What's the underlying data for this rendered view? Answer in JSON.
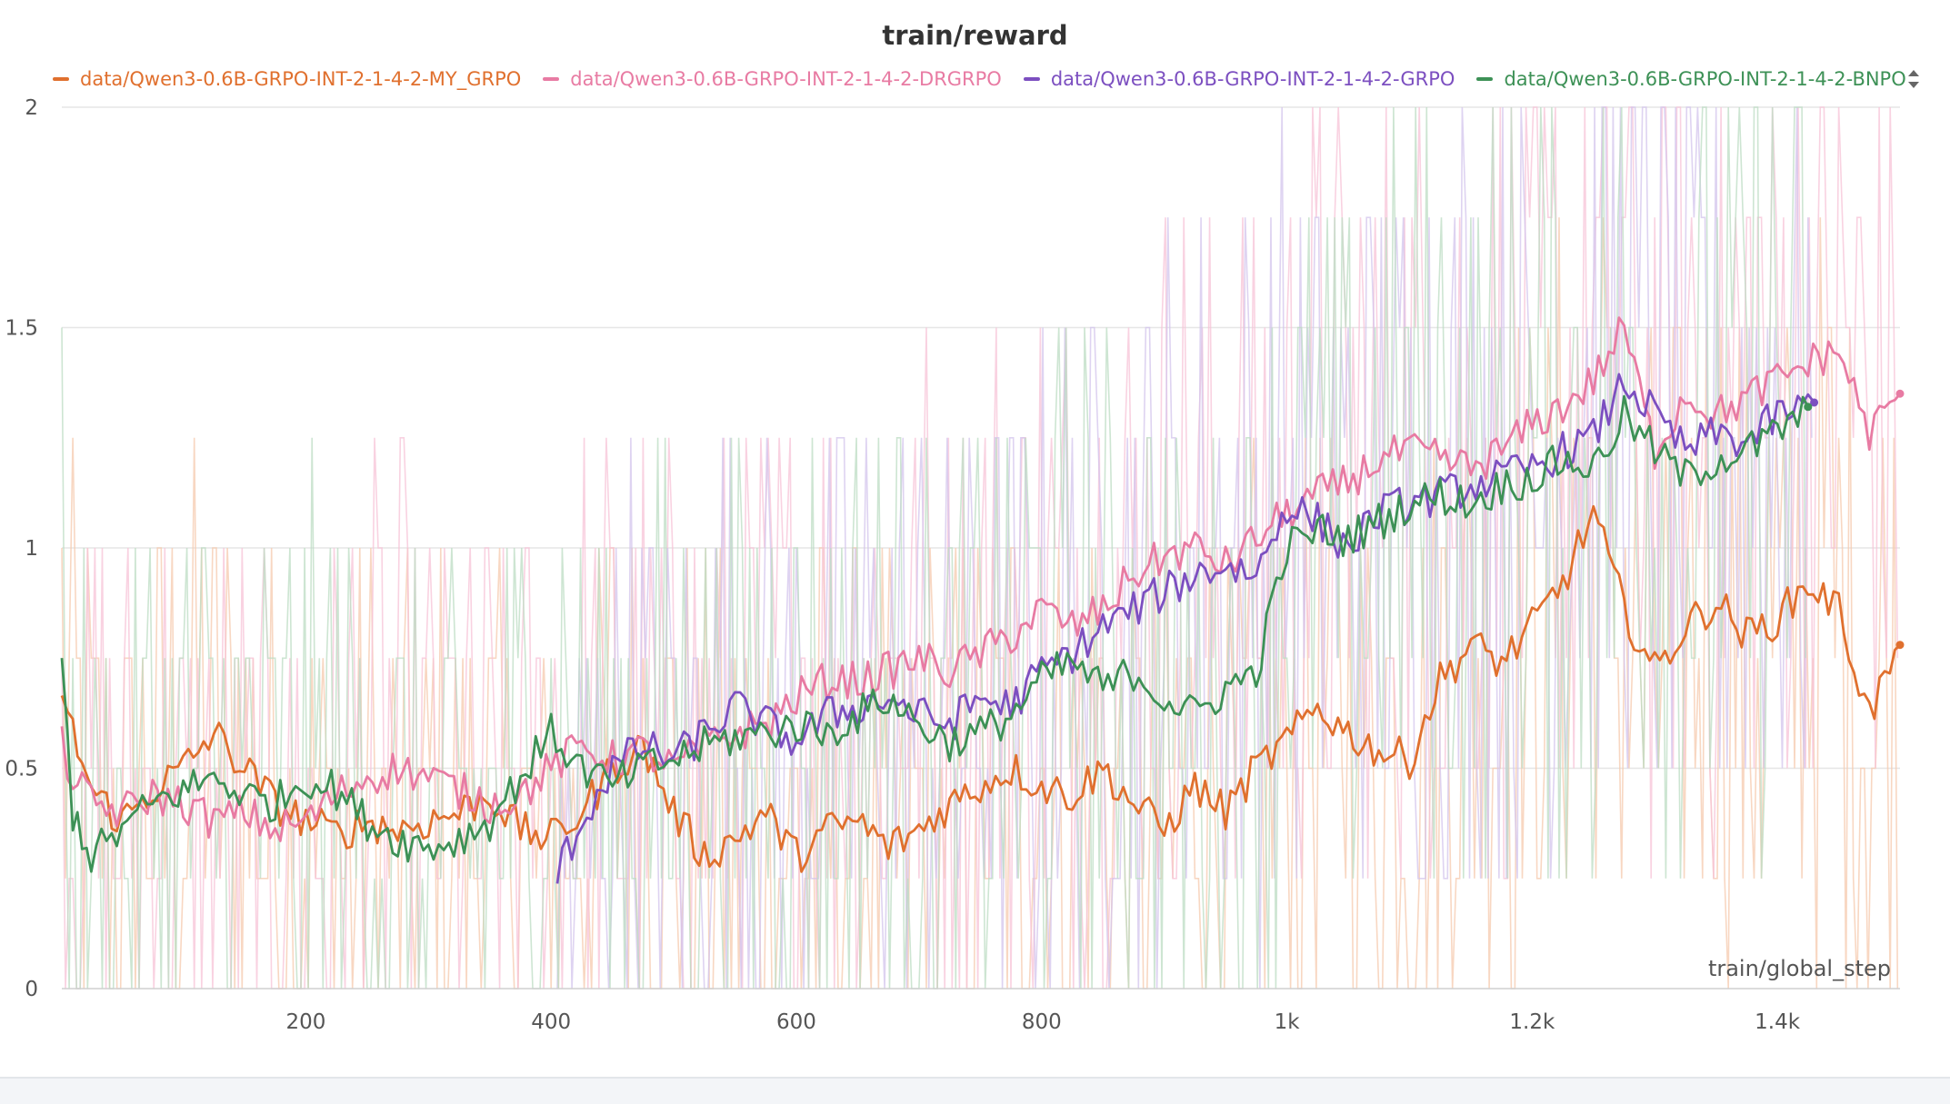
{
  "chart_data": {
    "type": "line",
    "title": "train/reward",
    "xlabel": "train/global_step",
    "ylabel": "",
    "xlim": [
      1,
      1500
    ],
    "ylim": [
      0,
      2
    ],
    "x_ticks": [
      200,
      400,
      600,
      800,
      1000,
      1200,
      1400
    ],
    "x_tick_labels": [
      "200",
      "400",
      "600",
      "800",
      "1k",
      "1.2k",
      "1.4k"
    ],
    "y_ticks": [
      0,
      0.5,
      1,
      1.5,
      2
    ],
    "y_tick_labels": [
      "0",
      "0.5",
      "1",
      "1.5",
      "2"
    ],
    "grid": true,
    "legend_position": "top",
    "series": [
      {
        "name": "data/Qwen3-0.6B-GRPO-INT-2-1-4-2-MY_GRPO",
        "color": "#e0702e",
        "raw_color": "#f5c9ad",
        "x": [
          1,
          10,
          25,
          50,
          75,
          100,
          125,
          150,
          175,
          200,
          225,
          250,
          275,
          300,
          325,
          350,
          375,
          400,
          425,
          450,
          475,
          500,
          525,
          550,
          575,
          600,
          625,
          650,
          675,
          700,
          725,
          750,
          775,
          800,
          825,
          850,
          875,
          900,
          925,
          950,
          975,
          1000,
          1025,
          1050,
          1075,
          1100,
          1125,
          1150,
          1175,
          1200,
          1225,
          1250,
          1275,
          1300,
          1325,
          1350,
          1375,
          1400,
          1425,
          1450,
          1475,
          1500
        ],
        "y": [
          0.65,
          0.58,
          0.45,
          0.38,
          0.45,
          0.5,
          0.58,
          0.5,
          0.42,
          0.38,
          0.35,
          0.38,
          0.36,
          0.38,
          0.4,
          0.44,
          0.36,
          0.34,
          0.4,
          0.5,
          0.55,
          0.4,
          0.3,
          0.34,
          0.4,
          0.3,
          0.36,
          0.38,
          0.32,
          0.36,
          0.42,
          0.46,
          0.5,
          0.46,
          0.44,
          0.5,
          0.42,
          0.36,
          0.46,
          0.4,
          0.5,
          0.56,
          0.64,
          0.58,
          0.54,
          0.52,
          0.7,
          0.78,
          0.74,
          0.82,
          0.92,
          1.08,
          0.86,
          0.72,
          0.82,
          0.88,
          0.8,
          0.84,
          0.92,
          0.86,
          0.62,
          0.78
        ]
      },
      {
        "name": "data/Qwen3-0.6B-GRPO-INT-2-1-4-2-DRGRPO",
        "color": "#e87ba3",
        "raw_color": "#f7c3d7",
        "x": [
          1,
          10,
          25,
          50,
          75,
          100,
          125,
          150,
          175,
          200,
          225,
          250,
          275,
          300,
          325,
          350,
          375,
          400,
          425,
          450,
          475,
          500,
          525,
          550,
          575,
          600,
          625,
          650,
          675,
          700,
          725,
          750,
          775,
          800,
          825,
          850,
          875,
          900,
          925,
          950,
          975,
          1000,
          1025,
          1050,
          1075,
          1100,
          1125,
          1150,
          1175,
          1200,
          1225,
          1250,
          1275,
          1300,
          1325,
          1350,
          1375,
          1400,
          1425,
          1450,
          1475,
          1500
        ],
        "y": [
          0.55,
          0.48,
          0.42,
          0.4,
          0.44,
          0.42,
          0.38,
          0.4,
          0.36,
          0.38,
          0.44,
          0.48,
          0.5,
          0.48,
          0.45,
          0.42,
          0.44,
          0.5,
          0.55,
          0.52,
          0.54,
          0.5,
          0.55,
          0.58,
          0.6,
          0.66,
          0.7,
          0.7,
          0.72,
          0.75,
          0.72,
          0.76,
          0.8,
          0.86,
          0.82,
          0.86,
          0.94,
          0.98,
          1.0,
          0.96,
          1.02,
          1.08,
          1.12,
          1.15,
          1.2,
          1.22,
          1.2,
          1.18,
          1.22,
          1.28,
          1.32,
          1.38,
          1.5,
          1.22,
          1.35,
          1.3,
          1.34,
          1.38,
          1.42,
          1.45,
          1.26,
          1.35
        ]
      },
      {
        "name": "data/Qwen3-0.6B-GRPO-INT-2-1-4-2-GRPO",
        "color": "#7c4fc0",
        "raw_color": "#d3c4ec",
        "x": [
          405,
          425,
          450,
          475,
          500,
          525,
          550,
          575,
          600,
          625,
          650,
          675,
          700,
          725,
          750,
          775,
          800,
          825,
          850,
          875,
          900,
          925,
          950,
          975,
          1000,
          1025,
          1050,
          1075,
          1100,
          1125,
          1150,
          1175,
          1200,
          1225,
          1250,
          1275,
          1300,
          1325,
          1350,
          1375,
          1400,
          1425,
          1430
        ],
        "y": [
          0.26,
          0.38,
          0.5,
          0.55,
          0.52,
          0.58,
          0.64,
          0.6,
          0.56,
          0.62,
          0.64,
          0.66,
          0.62,
          0.6,
          0.66,
          0.64,
          0.72,
          0.76,
          0.82,
          0.86,
          0.9,
          0.94,
          0.96,
          0.94,
          1.1,
          1.06,
          1.0,
          1.08,
          1.1,
          1.12,
          1.14,
          1.16,
          1.18,
          1.22,
          1.25,
          1.38,
          1.3,
          1.22,
          1.26,
          1.24,
          1.3,
          1.32,
          1.33
        ]
      },
      {
        "name": "data/Qwen3-0.6B-GRPO-INT-2-1-4-2-BNPO",
        "color": "#3d9156",
        "raw_color": "#bcdcc3",
        "x": [
          1,
          10,
          25,
          50,
          75,
          100,
          125,
          150,
          175,
          200,
          225,
          250,
          275,
          300,
          325,
          350,
          375,
          400,
          425,
          450,
          475,
          500,
          525,
          550,
          575,
          600,
          625,
          650,
          675,
          700,
          725,
          750,
          775,
          800,
          825,
          850,
          875,
          900,
          925,
          950,
          975,
          1000,
          1025,
          1050,
          1075,
          1100,
          1125,
          1150,
          1175,
          1200,
          1225,
          1250,
          1275,
          1300,
          1325,
          1350,
          1375,
          1400,
          1425
        ],
        "y": [
          0.75,
          0.4,
          0.3,
          0.36,
          0.42,
          0.45,
          0.48,
          0.44,
          0.42,
          0.48,
          0.45,
          0.38,
          0.34,
          0.32,
          0.34,
          0.38,
          0.48,
          0.58,
          0.5,
          0.46,
          0.5,
          0.52,
          0.55,
          0.57,
          0.58,
          0.6,
          0.58,
          0.62,
          0.66,
          0.6,
          0.56,
          0.58,
          0.62,
          0.7,
          0.74,
          0.68,
          0.72,
          0.66,
          0.62,
          0.68,
          0.72,
          1.0,
          1.04,
          1.02,
          1.06,
          1.1,
          1.12,
          1.1,
          1.14,
          1.16,
          1.2,
          1.18,
          1.3,
          1.22,
          1.16,
          1.2,
          1.22,
          1.26,
          1.32
        ]
      }
    ]
  },
  "legend_scroll_icon": "up-down-chevron-icon"
}
